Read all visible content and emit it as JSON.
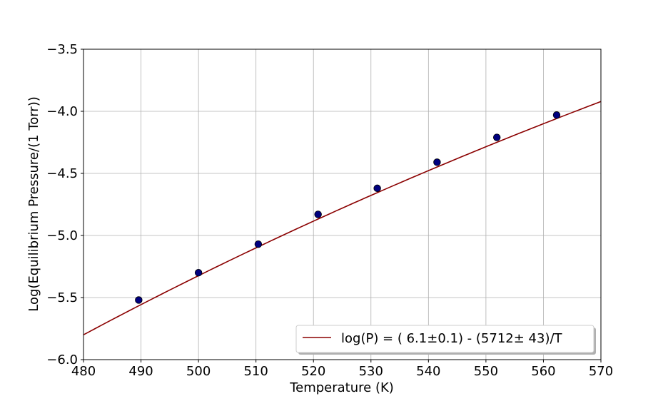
{
  "chart_data": {
    "type": "scatter",
    "xlabel": "Temperature (K)",
    "ylabel": "Log(Equilibrium Pressure/(1 Torr))",
    "xlim": [
      480,
      570
    ],
    "ylim": [
      -6.0,
      -3.5
    ],
    "xticks": [
      480,
      490,
      500,
      510,
      520,
      530,
      540,
      550,
      560,
      570
    ],
    "xtick_labels": [
      "480",
      "490",
      "500",
      "510",
      "520",
      "530",
      "540",
      "550",
      "560",
      "570"
    ],
    "yticks": [
      -6.0,
      -5.5,
      -5.0,
      -4.5,
      -4.0,
      -3.5
    ],
    "ytick_labels": [
      "−6.0",
      "−5.5",
      "−5.0",
      "−4.5",
      "−4.0",
      "−3.5"
    ],
    "grid": true,
    "legend_position": "lower-right",
    "legend_label": "log(P) = ( 6.1±0.1) - (5712± 43)/T",
    "points": {
      "x": [
        489.6,
        500.0,
        510.4,
        520.8,
        531.1,
        541.5,
        551.9,
        562.3
      ],
      "y": [
        -5.52,
        -5.3,
        -5.07,
        -4.83,
        -4.62,
        -4.41,
        -4.21,
        -4.03
      ],
      "color": "#00007f"
    },
    "fit": {
      "intercept": 6.1,
      "slope": 5712,
      "color": "#8b0000"
    }
  }
}
